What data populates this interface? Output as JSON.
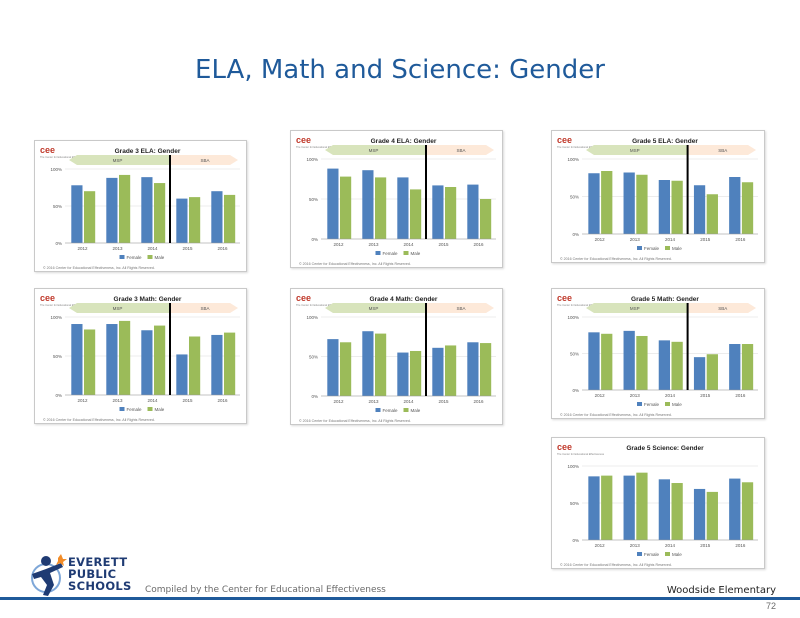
{
  "slide": {
    "title": "ELA, Math and Science: Gender",
    "compiled_by": "Compiled by the Center for Educational Effectiveness",
    "school": "Woodside Elementary",
    "page_number": "72",
    "district_logo": [
      "EVERETT",
      "PUBLIC",
      "SCHOOLS"
    ]
  },
  "colors": {
    "female": "#4f81bd",
    "male": "#9bbb59",
    "title": "#1f5a9a",
    "band_left": "#d8e4bc",
    "band_right": "#fde9d9"
  },
  "common": {
    "years": [
      "2012",
      "2013",
      "2014",
      "2015",
      "2016"
    ],
    "legend": [
      "Female",
      "Male"
    ],
    "cee_logo": "cee",
    "cee_tagline": "The Center for Educational Effectiveness",
    "copyright": "© 2016 Center for Educational Effectiveness, Inc. All Rights Reserved."
  },
  "chart_data": [
    {
      "type": "bar",
      "title": "Grade 3 ELA: Gender",
      "categories": [
        "2012",
        "2013",
        "2014",
        "2015",
        "2016"
      ],
      "ylim": [
        0,
        100
      ],
      "yticks": [
        "0%",
        "50%",
        "100%"
      ],
      "band_labels": [
        "MSP",
        "SBA"
      ],
      "series": [
        {
          "name": "Female",
          "values": [
            78,
            88,
            89,
            60,
            70
          ]
        },
        {
          "name": "Male",
          "values": [
            70,
            92,
            81,
            62,
            65
          ]
        }
      ]
    },
    {
      "type": "bar",
      "title": "Grade 4 ELA: Gender",
      "categories": [
        "2012",
        "2013",
        "2014",
        "2015",
        "2016"
      ],
      "ylim": [
        0,
        100
      ],
      "yticks": [
        "0%",
        "50%",
        "100%"
      ],
      "band_labels": [
        "MSP",
        "SBA"
      ],
      "series": [
        {
          "name": "Female",
          "values": [
            88,
            86,
            77,
            67,
            68
          ]
        },
        {
          "name": "Male",
          "values": [
            78,
            77,
            62,
            65,
            50
          ]
        }
      ]
    },
    {
      "type": "bar",
      "title": "Grade 5 ELA: Gender",
      "categories": [
        "2012",
        "2013",
        "2014",
        "2015",
        "2016"
      ],
      "ylim": [
        0,
        100
      ],
      "yticks": [
        "0%",
        "50%",
        "100%"
      ],
      "band_labels": [
        "MSP",
        "SBA"
      ],
      "series": [
        {
          "name": "Female",
          "values": [
            81,
            82,
            72,
            65,
            76
          ]
        },
        {
          "name": "Male",
          "values": [
            84,
            79,
            71,
            53,
            69
          ]
        }
      ]
    },
    {
      "type": "bar",
      "title": "Grade 3 Math: Gender",
      "categories": [
        "2012",
        "2013",
        "2014",
        "2015",
        "2016"
      ],
      "ylim": [
        0,
        100
      ],
      "yticks": [
        "0%",
        "50%",
        "100%"
      ],
      "band_labels": [
        "MSP",
        "SBA"
      ],
      "series": [
        {
          "name": "Female",
          "values": [
            91,
            91,
            83,
            52,
            77
          ]
        },
        {
          "name": "Male",
          "values": [
            84,
            95,
            89,
            75,
            80
          ]
        }
      ]
    },
    {
      "type": "bar",
      "title": "Grade 4 Math: Gender",
      "categories": [
        "2012",
        "2013",
        "2014",
        "2015",
        "2016"
      ],
      "ylim": [
        0,
        100
      ],
      "yticks": [
        "0%",
        "50%",
        "100%"
      ],
      "band_labels": [
        "MSP",
        "SBA"
      ],
      "series": [
        {
          "name": "Female",
          "values": [
            72,
            82,
            55,
            61,
            68
          ]
        },
        {
          "name": "Male",
          "values": [
            68,
            79,
            57,
            64,
            67
          ]
        }
      ]
    },
    {
      "type": "bar",
      "title": "Grade 5 Math: Gender",
      "categories": [
        "2012",
        "2013",
        "2014",
        "2015",
        "2016"
      ],
      "ylim": [
        0,
        100
      ],
      "yticks": [
        "0%",
        "50%",
        "100%"
      ],
      "band_labels": [
        "MSP",
        "SBA"
      ],
      "series": [
        {
          "name": "Female",
          "values": [
            79,
            81,
            68,
            45,
            63
          ]
        },
        {
          "name": "Male",
          "values": [
            77,
            74,
            66,
            49,
            63
          ]
        }
      ]
    },
    {
      "type": "bar",
      "title": "Grade 5 Science: Gender",
      "categories": [
        "2012",
        "2013",
        "2014",
        "2015",
        "2016"
      ],
      "ylim": [
        0,
        100
      ],
      "yticks": [
        "0%",
        "50%",
        "100%"
      ],
      "band_labels": [],
      "series": [
        {
          "name": "Female",
          "values": [
            86,
            87,
            82,
            69,
            83
          ]
        },
        {
          "name": "Male",
          "values": [
            87,
            91,
            77,
            65,
            78
          ]
        }
      ]
    }
  ]
}
